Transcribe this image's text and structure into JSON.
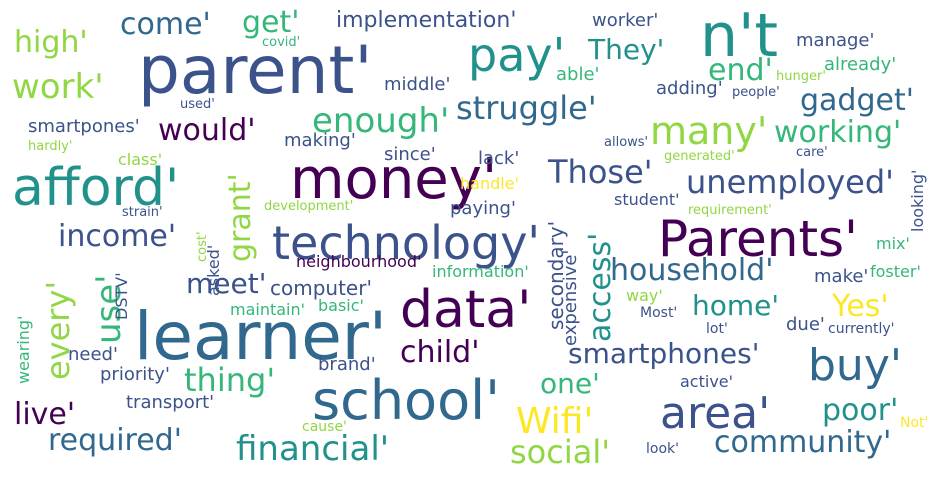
{
  "colors": {
    "background": "#ffffff",
    "dark_purple": "#440154",
    "indigo": "#3b528b",
    "slate": "#31688e",
    "teal": "#21918c",
    "green": "#35b779",
    "lime": "#90d743",
    "yellow": "#fde725"
  },
  "words": [
    {
      "text": "parent'",
      "color": "#3b528b",
      "rotated": false
    },
    {
      "text": "n't",
      "color": "#21918c",
      "rotated": false
    },
    {
      "text": "pay'",
      "color": "#21918c",
      "rotated": false
    },
    {
      "text": "afford'",
      "color": "#21918c",
      "rotated": false
    },
    {
      "text": "money'",
      "color": "#440154",
      "rotated": false
    },
    {
      "text": "technology'",
      "color": "#3b528b",
      "rotated": false
    },
    {
      "text": "Parents'",
      "color": "#440154",
      "rotated": false
    },
    {
      "text": "learner'",
      "color": "#31688e",
      "rotated": false
    },
    {
      "text": "data'",
      "color": "#440154",
      "rotated": false
    },
    {
      "text": "school'",
      "color": "#31688e",
      "rotated": false
    },
    {
      "text": "area'",
      "color": "#3b528b",
      "rotated": false
    },
    {
      "text": "buy'",
      "color": "#31688e",
      "rotated": false
    },
    {
      "text": "come'",
      "color": "#31688e",
      "rotated": false
    },
    {
      "text": "get'",
      "color": "#35b779",
      "rotated": false
    },
    {
      "text": "implementation'",
      "color": "#3b528b",
      "rotated": false
    },
    {
      "text": "worker'",
      "color": "#3b528b",
      "rotated": false
    },
    {
      "text": "high'",
      "color": "#90d743",
      "rotated": false
    },
    {
      "text": "covid'",
      "color": "#35b779",
      "rotated": false
    },
    {
      "text": "They'",
      "color": "#21918c",
      "rotated": false
    },
    {
      "text": "manage'",
      "color": "#3b528b",
      "rotated": false
    },
    {
      "text": "end'",
      "color": "#35b779",
      "rotated": false
    },
    {
      "text": "already'",
      "color": "#35b779",
      "rotated": false
    },
    {
      "text": "work'",
      "color": "#90d743",
      "rotated": false
    },
    {
      "text": "middle'",
      "color": "#3b528b",
      "rotated": false
    },
    {
      "text": "able'",
      "color": "#35b779",
      "rotated": false
    },
    {
      "text": "hunger'",
      "color": "#90d743",
      "rotated": false
    },
    {
      "text": "adding'",
      "color": "#3b528b",
      "rotated": false
    },
    {
      "text": "people'",
      "color": "#3b528b",
      "rotated": false
    },
    {
      "text": "gadget'",
      "color": "#31688e",
      "rotated": false
    },
    {
      "text": "used'",
      "color": "#3b528b",
      "rotated": false
    },
    {
      "text": "struggle'",
      "color": "#31688e",
      "rotated": false
    },
    {
      "text": "enough'",
      "color": "#35b779",
      "rotated": false
    },
    {
      "text": "would'",
      "color": "#440154",
      "rotated": false
    },
    {
      "text": "smartpones'",
      "color": "#3b528b",
      "rotated": false
    },
    {
      "text": "many'",
      "color": "#90d743",
      "rotated": false
    },
    {
      "text": "working'",
      "color": "#35b779",
      "rotated": false
    },
    {
      "text": "hardly'",
      "color": "#90d743",
      "rotated": false
    },
    {
      "text": "making'",
      "color": "#3b528b",
      "rotated": false
    },
    {
      "text": "allows'",
      "color": "#3b528b",
      "rotated": false
    },
    {
      "text": "class'",
      "color": "#90d743",
      "rotated": false
    },
    {
      "text": "since'",
      "color": "#3b528b",
      "rotated": false
    },
    {
      "text": "lack'",
      "color": "#3b528b",
      "rotated": false
    },
    {
      "text": "generated'",
      "color": "#90d743",
      "rotated": false
    },
    {
      "text": "care'",
      "color": "#3b528b",
      "rotated": false
    },
    {
      "text": "Those'",
      "color": "#3b528b",
      "rotated": false
    },
    {
      "text": "handle'",
      "color": "#fde725",
      "rotated": false
    },
    {
      "text": "unemployed'",
      "color": "#3b528b",
      "rotated": false
    },
    {
      "text": "looking'",
      "color": "#3b528b",
      "rotated": true
    },
    {
      "text": "strain'",
      "color": "#3b528b",
      "rotated": false
    },
    {
      "text": "development'",
      "color": "#90d743",
      "rotated": false
    },
    {
      "text": "paying'",
      "color": "#3b528b",
      "rotated": false
    },
    {
      "text": "student'",
      "color": "#3b528b",
      "rotated": false
    },
    {
      "text": "requirement'",
      "color": "#90d743",
      "rotated": false
    },
    {
      "text": "income'",
      "color": "#3b528b",
      "rotated": false
    },
    {
      "text": "grant'",
      "color": "#90d743",
      "rotated": true
    },
    {
      "text": "cost'",
      "color": "#90d743",
      "rotated": true
    },
    {
      "text": "asked'",
      "color": "#3b528b",
      "rotated": true
    },
    {
      "text": "secondary'",
      "color": "#3b528b",
      "rotated": true
    },
    {
      "text": "access'",
      "color": "#21918c",
      "rotated": true
    },
    {
      "text": "expensive'",
      "color": "#3b528b",
      "rotated": true
    },
    {
      "text": "mix'",
      "color": "#35b779",
      "rotated": false
    },
    {
      "text": "every'",
      "color": "#90d743",
      "rotated": true
    },
    {
      "text": "use'",
      "color": "#35b779",
      "rotated": true
    },
    {
      "text": "neighbourhood'",
      "color": "#440154",
      "rotated": false
    },
    {
      "text": "information'",
      "color": "#35b779",
      "rotated": false
    },
    {
      "text": "household'",
      "color": "#31688e",
      "rotated": false
    },
    {
      "text": "make'",
      "color": "#3b528b",
      "rotated": false
    },
    {
      "text": "foster'",
      "color": "#35b779",
      "rotated": false
    },
    {
      "text": "meet'",
      "color": "#3b528b",
      "rotated": false
    },
    {
      "text": "computer'",
      "color": "#3b528b",
      "rotated": false
    },
    {
      "text": "DSTV'",
      "color": "#3b528b",
      "rotated": true
    },
    {
      "text": "way'",
      "color": "#90d743",
      "rotated": false
    },
    {
      "text": "maintain'",
      "color": "#35b779",
      "rotated": false
    },
    {
      "text": "basic'",
      "color": "#35b779",
      "rotated": false
    },
    {
      "text": "home'",
      "color": "#21918c",
      "rotated": false
    },
    {
      "text": "Yes'",
      "color": "#fde725",
      "rotated": false
    },
    {
      "text": "wearing'",
      "color": "#35b779",
      "rotated": true
    },
    {
      "text": "Most'",
      "color": "#3b528b",
      "rotated": false
    },
    {
      "text": "lot'",
      "color": "#3b528b",
      "rotated": false
    },
    {
      "text": "due'",
      "color": "#3b528b",
      "rotated": false
    },
    {
      "text": "currently'",
      "color": "#3b528b",
      "rotated": false
    },
    {
      "text": "need'",
      "color": "#3b528b",
      "rotated": false
    },
    {
      "text": "child'",
      "color": "#440154",
      "rotated": false
    },
    {
      "text": "smartphones'",
      "color": "#3b528b",
      "rotated": false
    },
    {
      "text": "priority'",
      "color": "#3b528b",
      "rotated": false
    },
    {
      "text": "brand'",
      "color": "#3b528b",
      "rotated": false
    },
    {
      "text": "thing'",
      "color": "#35b779",
      "rotated": false
    },
    {
      "text": "one'",
      "color": "#35b779",
      "rotated": false
    },
    {
      "text": "active'",
      "color": "#3b528b",
      "rotated": false
    },
    {
      "text": "transport'",
      "color": "#3b528b",
      "rotated": false
    },
    {
      "text": "live'",
      "color": "#440154",
      "rotated": false
    },
    {
      "text": "poor'",
      "color": "#21918c",
      "rotated": false
    },
    {
      "text": "Wifi'",
      "color": "#fde725",
      "rotated": false
    },
    {
      "text": "Not'",
      "color": "#fde725",
      "rotated": false
    },
    {
      "text": "cause'",
      "color": "#90d743",
      "rotated": false
    },
    {
      "text": "required'",
      "color": "#31688e",
      "rotated": false
    },
    {
      "text": "community'",
      "color": "#31688e",
      "rotated": false
    },
    {
      "text": "financial'",
      "color": "#21918c",
      "rotated": false
    },
    {
      "text": "social'",
      "color": "#90d743",
      "rotated": false
    },
    {
      "text": "look'",
      "color": "#3b528b",
      "rotated": false
    }
  ]
}
